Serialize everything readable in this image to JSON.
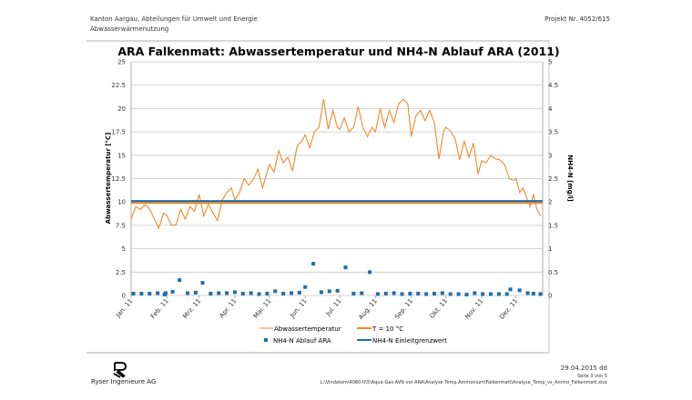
{
  "header": {
    "org_line1": "Kanton Aargau, Abteilungen für Umwelt und Energie",
    "org_line2": "Abwasserwärmenutzung",
    "project": "Projekt Nr. 4052/615"
  },
  "footer": {
    "company": "Ryser Ingenieure AG",
    "date": "29.04.2015 dd",
    "page": "Seite 3 von 5",
    "path": "L:\\Vindatem\\4080-0\\5\\Aqua-Gas AVN vor ARA\\Analyse Temp Ammonium\\Falkenmatt\\Analyse_Temp_vs_Ammo_Falkenmatt.xlsx"
  },
  "chart_data": {
    "type": "line",
    "title": "ARA Falkenmatt: Abwassertemperatur und NH4-N Ablauf ARA (2011)",
    "ylabel": "Abwassertemperatur [°C]",
    "y2label": "NH4-N [mg/l]",
    "ylim": [
      0,
      25
    ],
    "y2lim": [
      0,
      5
    ],
    "xlim": [
      "2011-01-01",
      "2011-12-24"
    ],
    "yticks": [
      "0",
      "2.5",
      "5",
      "7.5",
      "10",
      "12.5",
      "15",
      "17.5",
      "20",
      "22.5",
      "25"
    ],
    "y2ticks": [
      "0",
      "0.5",
      "1",
      "1.5",
      "2",
      "2.5",
      "3",
      "3.5",
      "4",
      "4.5",
      "5"
    ],
    "xticks": [
      {
        "date": "2011-01-01",
        "label": "Jan. 11"
      },
      {
        "date": "2011-02-01",
        "label": "Feb. 11"
      },
      {
        "date": "2011-03-01",
        "label": "Mrz. 11"
      },
      {
        "date": "2011-04-01",
        "label": "Apr. 11"
      },
      {
        "date": "2011-05-01",
        "label": "Mai. 11"
      },
      {
        "date": "2011-06-01",
        "label": "Jun. 11"
      },
      {
        "date": "2011-07-01",
        "label": "Jul. 11"
      },
      {
        "date": "2011-08-01",
        "label": "Aug. 11"
      },
      {
        "date": "2011-09-01",
        "label": "Sep. 11"
      },
      {
        "date": "2011-10-01",
        "label": "Okt. 11"
      },
      {
        "date": "2011-11-01",
        "label": "Nov. 11"
      },
      {
        "date": "2011-12-01",
        "label": "Dez. 11"
      }
    ],
    "grid": true,
    "legend_position": "bottom",
    "series": [
      {
        "name": "Abwassertemperatur",
        "axis": "left",
        "kind": "line",
        "color": "#f0892a",
        "monthly_days": [
          1,
          5,
          9,
          13,
          17,
          21,
          25,
          29
        ],
        "values_by_month": [
          [
            8.2,
            9.5,
            9.2,
            9.7,
            9.3,
            8.2,
            7.2,
            8.8
          ],
          [
            8.6,
            7.5,
            7.6,
            9.2,
            8.2,
            9.5,
            9.0,
            10.8
          ],
          [
            10.8,
            8.5,
            9.8,
            8.8,
            8.0,
            10.2,
            11.0,
            11.5
          ],
          [
            10.2,
            11.0,
            12.5,
            11.8,
            12.4,
            13.5,
            11.5,
            13.2
          ],
          [
            14.0,
            13.2,
            15.5,
            14.2,
            14.8,
            13.3,
            16.0,
            16.5
          ],
          [
            17.2,
            15.8,
            17.5,
            18.0,
            21.0,
            17.8,
            19.8,
            18.0
          ],
          [
            17.8,
            19.0,
            17.5,
            18.0,
            20.2,
            18.0,
            17.0,
            18.0
          ],
          [
            17.5,
            20.0,
            18.0,
            19.8,
            18.5,
            20.5,
            21.0,
            20.5
          ],
          [
            17.0,
            19.2,
            19.8,
            18.7,
            19.8,
            18.5,
            14.6,
            17.5
          ],
          [
            18.0,
            17.6,
            16.8,
            14.5,
            16.5,
            14.8,
            16.3,
            13.0
          ],
          [
            14.4,
            14.2,
            15.0,
            14.6,
            14.5,
            14.0,
            12.5,
            12.3
          ],
          [
            12.5,
            11.0,
            11.5,
            10.5,
            9.5,
            10.8,
            9.2,
            8.5
          ]
        ]
      },
      {
        "name": "T = 10 °C",
        "axis": "left",
        "kind": "hline",
        "value": 10,
        "color": "#f0892a"
      },
      {
        "name": "NH4-N Ablauf ARA",
        "axis": "right",
        "kind": "scatter",
        "color": "#1f6ea8",
        "points": [
          [
            "2011-01-03",
            0.04
          ],
          [
            "2011-01-10",
            0.04
          ],
          [
            "2011-01-17",
            0.04
          ],
          [
            "2011-01-24",
            0.05
          ],
          [
            "2011-01-30",
            0.02
          ],
          [
            "2011-01-31",
            0.05
          ],
          [
            "2011-02-06",
            0.08
          ],
          [
            "2011-02-12",
            0.33
          ],
          [
            "2011-02-19",
            0.05
          ],
          [
            "2011-02-26",
            0.06
          ],
          [
            "2011-03-04",
            0.27
          ],
          [
            "2011-03-11",
            0.04
          ],
          [
            "2011-03-18",
            0.05
          ],
          [
            "2011-03-25",
            0.05
          ],
          [
            "2011-04-01",
            0.07
          ],
          [
            "2011-04-08",
            0.04
          ],
          [
            "2011-04-15",
            0.05
          ],
          [
            "2011-04-22",
            0.03
          ],
          [
            "2011-04-29",
            0.04
          ],
          [
            "2011-05-06",
            0.09
          ],
          [
            "2011-05-13",
            0.04
          ],
          [
            "2011-05-20",
            0.05
          ],
          [
            "2011-05-27",
            0.06
          ],
          [
            "2011-06-01",
            0.18
          ],
          [
            "2011-06-08",
            0.68
          ],
          [
            "2011-06-15",
            0.07
          ],
          [
            "2011-06-22",
            0.09
          ],
          [
            "2011-06-29",
            0.1
          ],
          [
            "2011-07-06",
            0.6
          ],
          [
            "2011-07-13",
            0.04
          ],
          [
            "2011-07-20",
            0.05
          ],
          [
            "2011-07-27",
            0.5
          ],
          [
            "2011-08-03",
            0.03
          ],
          [
            "2011-08-10",
            0.04
          ],
          [
            "2011-08-17",
            0.05
          ],
          [
            "2011-08-24",
            0.03
          ],
          [
            "2011-08-31",
            0.04
          ],
          [
            "2011-09-07",
            0.04
          ],
          [
            "2011-09-14",
            0.03
          ],
          [
            "2011-09-21",
            0.04
          ],
          [
            "2011-09-28",
            0.05
          ],
          [
            "2011-10-05",
            0.03
          ],
          [
            "2011-10-12",
            0.03
          ],
          [
            "2011-10-19",
            0.02
          ],
          [
            "2011-10-26",
            0.05
          ],
          [
            "2011-11-02",
            0.03
          ],
          [
            "2011-11-09",
            0.03
          ],
          [
            "2011-11-16",
            0.03
          ],
          [
            "2011-11-23",
            0.03
          ],
          [
            "2011-11-26",
            0.13
          ],
          [
            "2011-12-04",
            0.11
          ],
          [
            "2011-12-11",
            0.05
          ],
          [
            "2011-12-16",
            0.04
          ],
          [
            "2011-12-22",
            0.03
          ]
        ]
      },
      {
        "name": "NH4-N Einleitgrenzwert",
        "axis": "right",
        "kind": "hline",
        "value": 2,
        "color": "#1f6ea8"
      }
    ]
  }
}
